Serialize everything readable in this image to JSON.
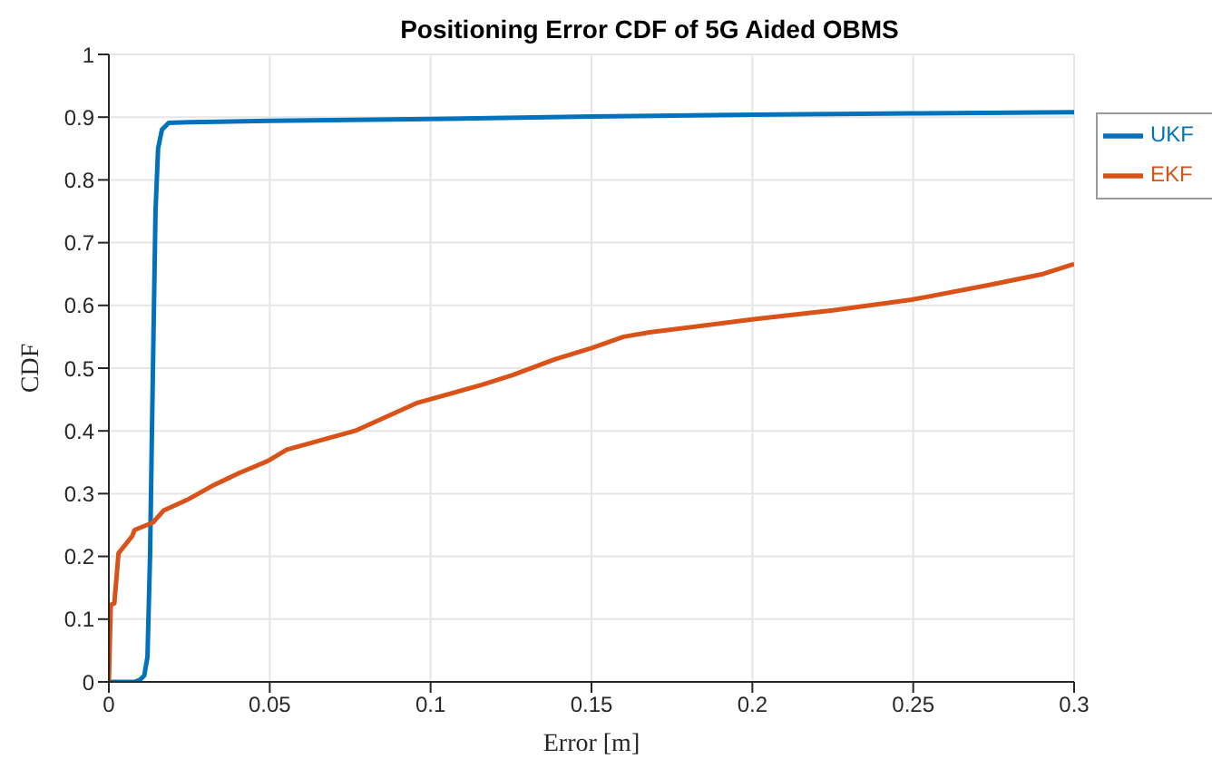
{
  "chart_data": {
    "type": "line",
    "title": "Positioning Error CDF of 5G Aided OBMS",
    "xlabel": "Error [m]",
    "ylabel": "CDF",
    "xlim": [
      0,
      0.3
    ],
    "ylim": [
      0,
      1
    ],
    "xticks": [
      0,
      0.05,
      0.1,
      0.15,
      0.2,
      0.25,
      0.3
    ],
    "yticks": [
      0,
      0.1,
      0.2,
      0.3,
      0.4,
      0.5,
      0.6,
      0.7,
      0.8,
      0.9,
      1
    ],
    "grid": true,
    "legend": "top right",
    "marker": "none",
    "line_style": "solid",
    "series": [
      {
        "name": "UKF",
        "color": "#0072bd",
        "x": [
          0,
          0.008,
          0.0096,
          0.011,
          0.012,
          0.0128,
          0.0137,
          0.0145,
          0.0153,
          0.0165,
          0.0186,
          0.025,
          0.05,
          0.1,
          0.15,
          0.2,
          0.25,
          0.3
        ],
        "values": [
          0,
          0,
          0.003,
          0.01,
          0.04,
          0.2,
          0.5,
          0.75,
          0.85,
          0.88,
          0.891,
          0.892,
          0.894,
          0.897,
          0.901,
          0.904,
          0.906,
          0.908
        ]
      },
      {
        "name": "EKF",
        "color": "#d95319",
        "x": [
          0,
          0.0006,
          0.0017,
          0.003,
          0.0072,
          0.008,
          0.0137,
          0.017,
          0.0243,
          0.032,
          0.0406,
          0.0494,
          0.0553,
          0.0765,
          0.096,
          0.1157,
          0.1255,
          0.1385,
          0.15,
          0.16,
          0.168,
          0.2005,
          0.225,
          0.2495,
          0.274,
          0.2903,
          0.3
        ],
        "values": [
          0,
          0.123,
          0.125,
          0.205,
          0.232,
          0.242,
          0.254,
          0.273,
          0.29,
          0.312,
          0.333,
          0.352,
          0.37,
          0.4,
          0.445,
          0.473,
          0.489,
          0.514,
          0.532,
          0.55,
          0.557,
          0.578,
          0.592,
          0.609,
          0.633,
          0.65,
          0.666
        ]
      }
    ]
  }
}
